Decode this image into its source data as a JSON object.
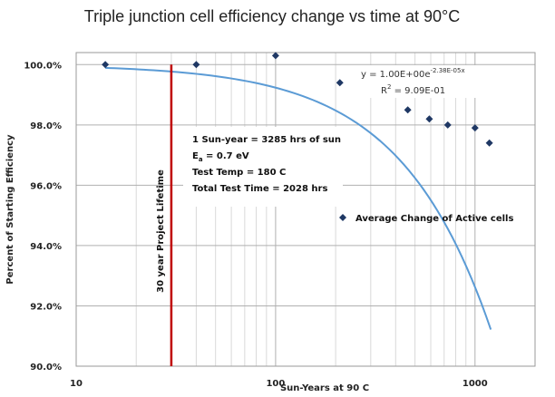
{
  "chart_data": {
    "type": "scatter",
    "title": "Triple junction cell efficiency change vs time at 90°C",
    "xlabel": "Sun-Years at 90 C",
    "ylabel": "Percent of Starting Efficiency",
    "x_scale": "log",
    "xlim": [
      10,
      2000
    ],
    "ylim": [
      90,
      100.4
    ],
    "x_ticks": [
      10,
      100,
      1000
    ],
    "x_tick_labels": [
      "10",
      "100",
      "1000"
    ],
    "y_ticks": [
      90,
      92,
      94,
      96,
      98,
      100
    ],
    "y_tick_labels": [
      "90.0%",
      "92.0%",
      "94.0%",
      "96.0%",
      "98.0%",
      "100.0%"
    ],
    "grid": true,
    "series": [
      {
        "name": "Average Change of Active cells",
        "marker": "diamond",
        "color": "#1f3864",
        "x": [
          14,
          40,
          100,
          210,
          460,
          590,
          730,
          1000,
          1180
        ],
        "y": [
          100.0,
          100.0,
          100.3,
          99.4,
          98.5,
          98.2,
          98.0,
          97.9,
          97.4
        ]
      }
    ],
    "trendline": {
      "type": "exponential",
      "color": "#5b9bd5",
      "a": 1.0,
      "b": -2.38e-05,
      "equation_label": "y = 1.00E+00e",
      "equation_exponent": "-2.38E-05x",
      "r2_label": "R",
      "r2_sup": "2",
      "r2_value": " = 9.09E-01"
    },
    "reference_line": {
      "x": 30,
      "color": "#c00000",
      "label": "30 year Project Lifetime"
    },
    "annotation": {
      "line1": "1 Sun-year = 3285 hrs of sun",
      "line2_prefix": "E",
      "line2_sub": "a",
      "line2_rest": " = 0.7 eV",
      "line3": "Test Temp = 180 C",
      "line4": "Total Test Time = 2028 hrs"
    },
    "legend": {
      "position": "right",
      "label": "Average Change of Active cells"
    }
  }
}
